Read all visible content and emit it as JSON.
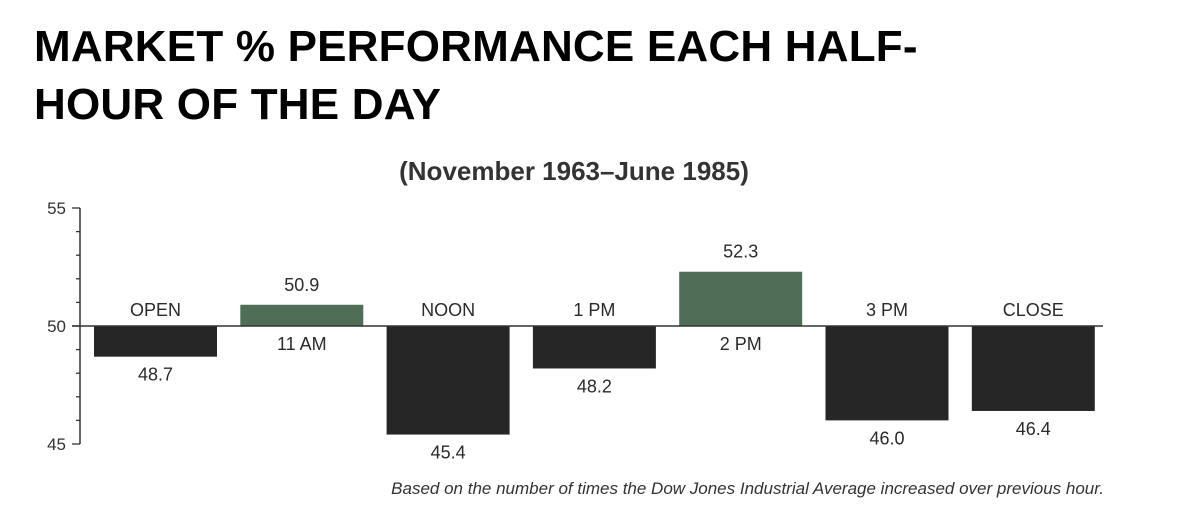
{
  "title_line1": "MARKET % PERFORMANCE EACH HALF-",
  "title_line2": "HOUR OF THE DAY",
  "colors": {
    "below_baseline": "#262626",
    "above_baseline": "#4e6e58",
    "axis": "#333333"
  },
  "chart_data": {
    "type": "bar",
    "title": "MARKET % PERFORMANCE EACH HALF-HOUR OF THE DAY",
    "subtitle": "(November 1963–June 1985)",
    "categories": [
      "OPEN",
      "11 AM",
      "NOON",
      "1 PM",
      "2 PM",
      "3 PM",
      "CLOSE"
    ],
    "values": [
      48.7,
      50.9,
      45.4,
      48.2,
      52.3,
      46.0,
      46.4
    ],
    "value_labels": [
      "48.7",
      "50.9",
      "45.4",
      "48.2",
      "52.3",
      "46.0",
      "46.4"
    ],
    "baseline": 50,
    "ylim": [
      45,
      55
    ],
    "yticks": [
      45,
      50,
      55
    ],
    "ytick_labels": [
      "45",
      "50",
      "55"
    ],
    "xlabel": "",
    "ylabel": "",
    "grid": false,
    "legend": "none",
    "footnote": "Based on the number of times the Dow Jones Industrial Average increased over previous hour."
  }
}
